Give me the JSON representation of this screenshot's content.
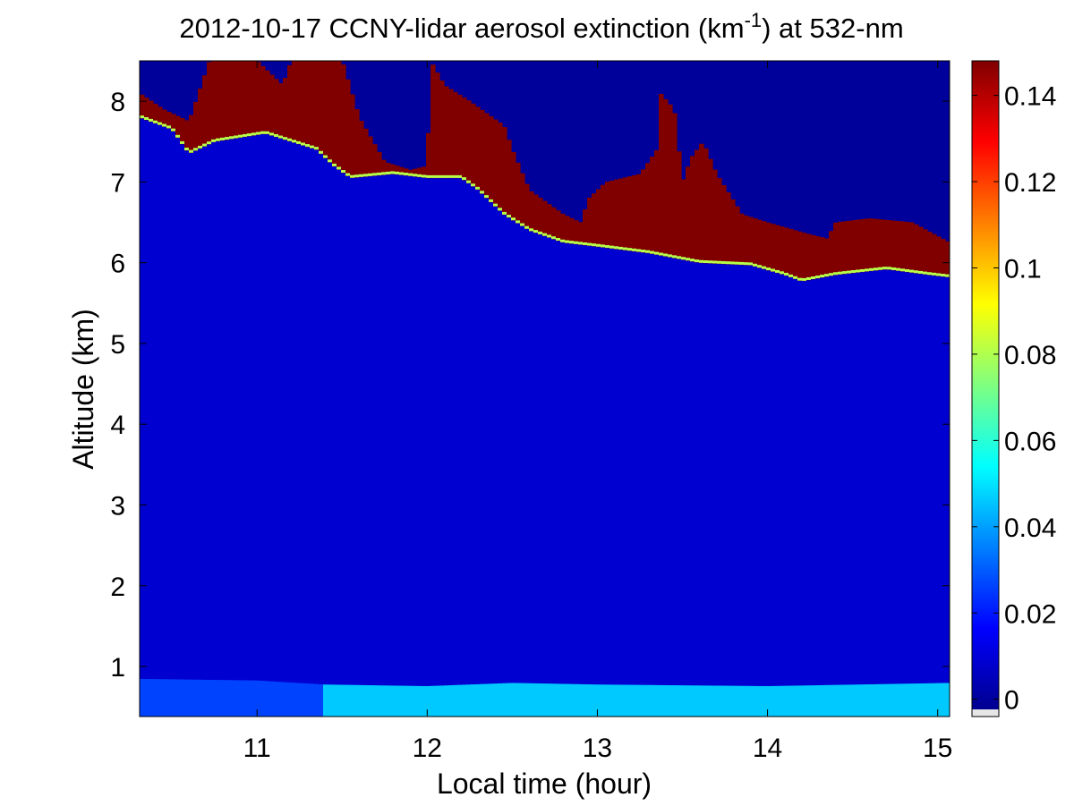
{
  "chart_data": {
    "type": "heatmap",
    "title": "2012-10-17 CCNY-lidar aerosol extinction (km",
    "title_superscript": "-1",
    "title_suffix": ") at 532-nm",
    "xlabel": "Local time (hour)",
    "ylabel": "Altitude (km)",
    "xlim": [
      10.31,
      15.07
    ],
    "ylim": [
      0.38,
      8.5
    ],
    "x_ticks": [
      11,
      12,
      13,
      14,
      15
    ],
    "y_ticks": [
      1,
      2,
      3,
      4,
      5,
      6,
      7,
      8
    ],
    "colormap": "jet",
    "colorbar": {
      "range": [
        -0.004,
        0.148
      ],
      "ticks": [
        0,
        0.02,
        0.04,
        0.06,
        0.08,
        0.1,
        0.12,
        0.14
      ],
      "tick_labels": [
        "0",
        "0.02",
        "0.04",
        "0.06",
        "0.08",
        "0.1",
        "0.12",
        "0.14"
      ],
      "low_cap_color": "#e6e6e6"
    },
    "background_value": 0.0,
    "layers": {
      "free_troposphere_value": 0.008,
      "boundary_layer": {
        "bottom_km": 0.38,
        "top_km": [
          [
            10.31,
            0.85
          ],
          [
            11.0,
            0.83
          ],
          [
            11.4,
            0.78
          ],
          [
            12.0,
            0.76
          ],
          [
            12.5,
            0.8
          ],
          [
            13.0,
            0.78
          ],
          [
            14.0,
            0.76
          ],
          [
            15.07,
            0.8
          ]
        ],
        "value_before_11_4h": 0.025,
        "value_after_11_4h": 0.045
      },
      "cloud_base_km": [
        [
          10.31,
          7.8
        ],
        [
          10.5,
          7.65
        ],
        [
          10.6,
          7.35
        ],
        [
          10.75,
          7.5
        ],
        [
          10.9,
          7.55
        ],
        [
          11.05,
          7.6
        ],
        [
          11.2,
          7.5
        ],
        [
          11.35,
          7.4
        ],
        [
          11.45,
          7.2
        ],
        [
          11.55,
          7.05
        ],
        [
          11.8,
          7.1
        ],
        [
          12.0,
          7.05
        ],
        [
          12.2,
          7.05
        ],
        [
          12.3,
          6.9
        ],
        [
          12.45,
          6.6
        ],
        [
          12.6,
          6.4
        ],
        [
          12.8,
          6.25
        ],
        [
          13.0,
          6.2
        ],
        [
          13.3,
          6.12
        ],
        [
          13.6,
          6.0
        ],
        [
          13.9,
          5.97
        ],
        [
          14.1,
          5.85
        ],
        [
          14.2,
          5.77
        ],
        [
          14.4,
          5.85
        ],
        [
          14.7,
          5.92
        ],
        [
          14.95,
          5.85
        ],
        [
          15.07,
          5.82
        ]
      ],
      "cloud_top_km": [
        [
          10.31,
          8.1
        ],
        [
          10.45,
          7.9
        ],
        [
          10.6,
          7.75
        ],
        [
          10.72,
          8.5
        ],
        [
          11.0,
          8.5
        ],
        [
          11.15,
          8.2
        ],
        [
          11.2,
          8.5
        ],
        [
          11.5,
          8.5
        ],
        [
          11.6,
          7.8
        ],
        [
          11.75,
          7.25
        ],
        [
          11.9,
          7.15
        ],
        [
          12.0,
          7.2
        ],
        [
          12.02,
          8.5
        ],
        [
          12.1,
          8.2
        ],
        [
          12.25,
          8.0
        ],
        [
          12.45,
          7.7
        ],
        [
          12.5,
          7.4
        ],
        [
          12.6,
          6.9
        ],
        [
          12.8,
          6.6
        ],
        [
          12.9,
          6.5
        ],
        [
          12.95,
          6.8
        ],
        [
          13.05,
          7.0
        ],
        [
          13.25,
          7.1
        ],
        [
          13.35,
          7.4
        ],
        [
          13.37,
          8.1
        ],
        [
          13.45,
          7.9
        ],
        [
          13.5,
          7.0
        ],
        [
          13.55,
          7.3
        ],
        [
          13.62,
          7.5
        ],
        [
          13.7,
          7.1
        ],
        [
          13.85,
          6.6
        ],
        [
          14.0,
          6.5
        ],
        [
          14.25,
          6.35
        ],
        [
          14.35,
          6.3
        ],
        [
          14.4,
          6.5
        ],
        [
          14.6,
          6.55
        ],
        [
          14.85,
          6.5
        ],
        [
          15.07,
          6.25
        ]
      ],
      "cloud_value": 0.15
    }
  }
}
